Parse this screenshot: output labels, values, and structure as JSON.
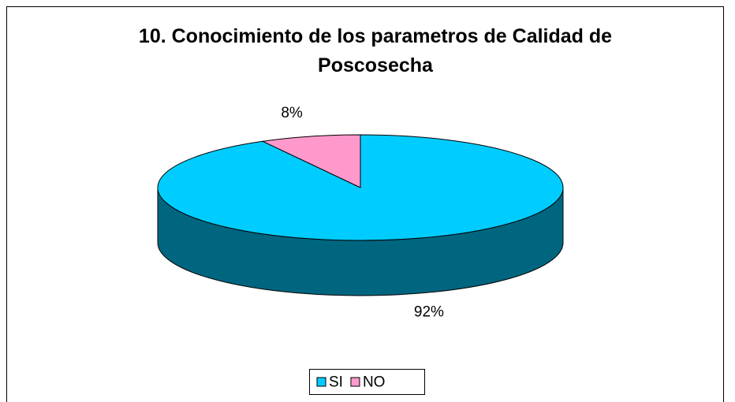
{
  "chart_data": {
    "type": "pie",
    "title": "10. Conocimiento de los parametros de Calidad de Poscosecha",
    "categories": [
      "SI",
      "NO"
    ],
    "values": [
      92,
      8
    ],
    "value_labels": [
      "92%",
      "8%"
    ],
    "colors": [
      "#00ccff",
      "#ff99cc"
    ],
    "legend": "bottom"
  }
}
